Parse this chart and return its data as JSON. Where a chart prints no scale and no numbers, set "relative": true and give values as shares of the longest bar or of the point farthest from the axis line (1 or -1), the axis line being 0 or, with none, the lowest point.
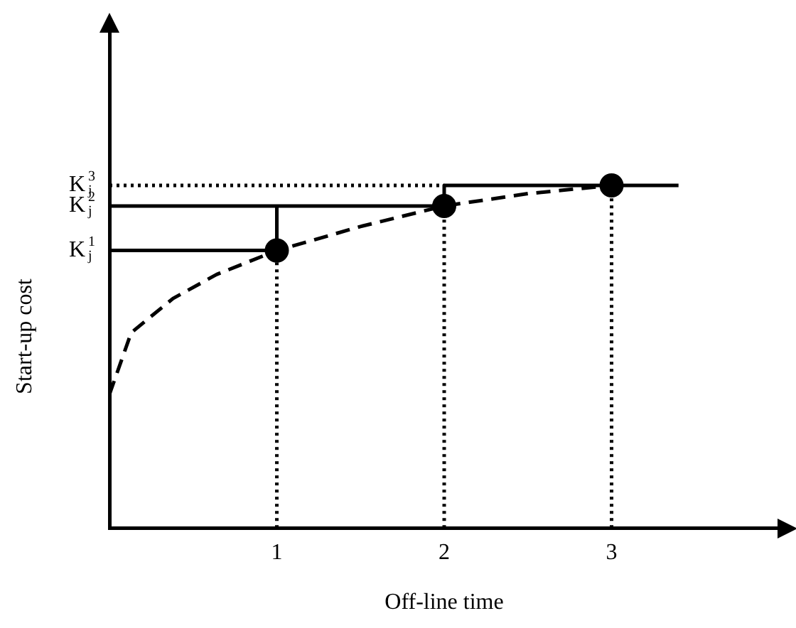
{
  "chart_data": {
    "type": "line",
    "relative": true,
    "xlabel": "Off-line time",
    "ylabel": "Start-up cost",
    "xlim": [
      0,
      4
    ],
    "xticks": [
      1,
      2,
      3
    ],
    "tick_labels": "x",
    "grid": false,
    "legend": false,
    "annotations": [
      "K$_{j}$$^{1}$",
      "K$_{j}$$^{2}$",
      "K$_{j}$$^{3}$"
    ],
    "series": [
      {
        "color": "#000000",
        "line_style": "dashed",
        "marker": "none",
        "x": [
          0,
          0.13,
          0.38,
          0.64,
          1,
          1.5,
          2,
          2.5,
          3
        ],
        "values": [
          0.39,
          0.57,
          0.67,
          0.74,
          0.81,
          0.88,
          0.94,
          0.976,
          1
        ]
      },
      {
        "color": "#000000",
        "line_style": "solid",
        "marker": "none",
        "x": [
          0,
          1,
          1
        ],
        "values": [
          0.81,
          0.81,
          0.94
        ]
      },
      {
        "color": "#000000",
        "line_style": "solid",
        "marker": "none",
        "x": [
          0,
          2,
          2,
          3.4
        ],
        "values": [
          0.94,
          0.94,
          1,
          1
        ]
      },
      {
        "type": "line",
        "color": "#000000",
        "line_style": "dotted",
        "marker": "none",
        "x": [
          1,
          1
        ],
        "values": [
          0,
          0.81
        ]
      },
      {
        "type": "line",
        "color": "#000000",
        "line_style": "dotted",
        "marker": "none",
        "x": [
          2,
          2
        ],
        "values": [
          0,
          0.94
        ]
      },
      {
        "type": "line",
        "color": "#000000",
        "line_style": "dotted",
        "marker": "none",
        "x": [
          3,
          3
        ],
        "values": [
          0,
          1
        ]
      },
      {
        "type": "line",
        "color": "#000000",
        "line_style": "dotted",
        "marker": "none",
        "x": [
          0,
          2
        ],
        "values": [
          1,
          1
        ]
      },
      {
        "type": "scatter",
        "color": "#000000",
        "marker": "circle",
        "x": [
          1,
          2,
          3
        ],
        "values": [
          0.81,
          0.94,
          1
        ]
      }
    ]
  }
}
